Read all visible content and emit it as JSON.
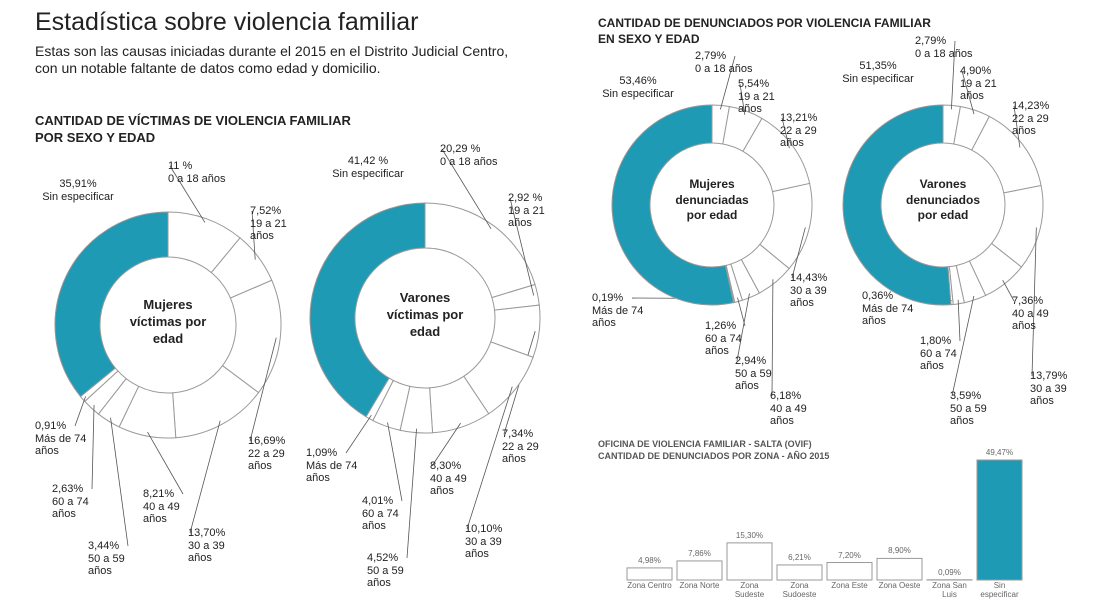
{
  "header": {
    "title": "Estadística sobre violencia familiar",
    "subtitle": "Estas son las causas iniciadas durante el 2015 en el Distrito Judicial Centro, con un notable faltante de datos como edad y domicilio."
  },
  "sections": [
    {
      "title": "CANTIDAD DE VÍCTIMAS DE VIOLENCIA FAMILIAR POR SEXO Y EDAD"
    },
    {
      "title": "CANTIDAD DE DENUNCIADOS POR VIOLENCIA FAMILIAR EN SEXO Y EDAD"
    }
  ],
  "chart_data": [
    {
      "type": "donut",
      "title": "Mujeres víctimas por edad",
      "categories": [
        "0 a 18 años",
        "19 a 21 años",
        "22 a 29 años",
        "30 a 39 años",
        "40 a 49 años",
        "50 a 59 años",
        "60 a 74 años",
        "Más de 74 años",
        "Sin especificar"
      ],
      "values": [
        11,
        7.52,
        16.69,
        13.7,
        8.21,
        3.44,
        2.63,
        0.91,
        35.91
      ],
      "value_labels": [
        "11 %",
        "7,52%",
        "16,69%",
        "13,70%",
        "8,21%",
        "3,44%",
        "2,63%",
        "0,91%",
        "35,91%"
      ],
      "colors": [
        "#ffffff",
        "#ffffff",
        "#ffffff",
        "#ffffff",
        "#ffffff",
        "#ffffff",
        "#ffffff",
        "#ffffff",
        "#1f9ab5"
      ]
    },
    {
      "type": "donut",
      "title": "Varones víctimas por edad",
      "categories": [
        "0 a 18 años",
        "19 a 21 años",
        "22 a 29 años",
        "30 a 39 años",
        "40 a 49 años",
        "50 a 59 años",
        "60 a 74 años",
        "Más de 74 años",
        "Sin especificar"
      ],
      "values": [
        20.29,
        2.92,
        7.34,
        10.1,
        8.3,
        4.52,
        4.01,
        1.09,
        41.42
      ],
      "value_labels": [
        "20,29 %",
        "2,92 %",
        "7,34%",
        "10,10%",
        "8,30%",
        "4,52%",
        "4,01%",
        "1,09%",
        "41,42 %"
      ],
      "colors": [
        "#ffffff",
        "#ffffff",
        "#ffffff",
        "#ffffff",
        "#ffffff",
        "#ffffff",
        "#ffffff",
        "#ffffff",
        "#1f9ab5"
      ]
    },
    {
      "type": "donut",
      "title": "Mujeres denunciadas por edad",
      "categories": [
        "0 a 18 años",
        "19 a 21 años",
        "22 a 29 años",
        "30 a 39 años",
        "40 a 49 años",
        "50 a 59 años",
        "60 a 74 años",
        "Más de 74 años",
        "Sin especificar"
      ],
      "values": [
        2.79,
        5.54,
        13.21,
        14.43,
        6.18,
        2.94,
        1.26,
        0.19,
        53.46
      ],
      "value_labels": [
        "2,79%",
        "5,54%",
        "13,21%",
        "14,43%",
        "6,18%",
        "2,94%",
        "1,26%",
        "0,19%",
        "53,46%"
      ],
      "colors": [
        "#ffffff",
        "#ffffff",
        "#ffffff",
        "#ffffff",
        "#ffffff",
        "#ffffff",
        "#ffffff",
        "#ffffff",
        "#1f9ab5"
      ]
    },
    {
      "type": "donut",
      "title": "Varones denunciados por edad",
      "categories": [
        "0 a 18 años",
        "19 a 21 años",
        "22 a 29 años",
        "30 a 39 años",
        "40 a 49 años",
        "50 a 59 años",
        "60 a 74 años",
        "Más de 74 años",
        "Sin especificar"
      ],
      "values": [
        2.79,
        4.9,
        14.23,
        13.79,
        7.36,
        3.59,
        1.8,
        0.36,
        51.35
      ],
      "value_labels": [
        "2,79%",
        "4,90%",
        "14,23%",
        "13,79%",
        "7,36%",
        "3,59%",
        "1,80%",
        "0,36%",
        "51,35%"
      ],
      "colors": [
        "#ffffff",
        "#ffffff",
        "#ffffff",
        "#ffffff",
        "#ffffff",
        "#ffffff",
        "#ffffff",
        "#ffffff",
        "#1f9ab5"
      ]
    },
    {
      "type": "bar",
      "title": "OFICINA DE VIOLENCIA FAMILIAR - SALTA (OVIF)",
      "subtitle": "CANTIDAD DE DENUNCIADOS POR ZONA - AÑO 2015",
      "categories": [
        "Zona Centro",
        "Zona Norte",
        "Zona Sudeste",
        "Zona Sudoeste",
        "Zona Este",
        "Zona Oeste",
        "Zona San Luis",
        "Sin especificar"
      ],
      "values": [
        4.98,
        7.86,
        15.3,
        6.21,
        7.2,
        8.9,
        0.09,
        49.47
      ],
      "value_labels": [
        "4,98%",
        "7,86%",
        "15,30%",
        "6,21%",
        "7,20%",
        "8,90%",
        "0,09%",
        "49,47%"
      ],
      "colors": [
        "#ffffff",
        "#ffffff",
        "#ffffff",
        "#ffffff",
        "#ffffff",
        "#ffffff",
        "#ffffff",
        "#1f9ab5"
      ]
    }
  ]
}
